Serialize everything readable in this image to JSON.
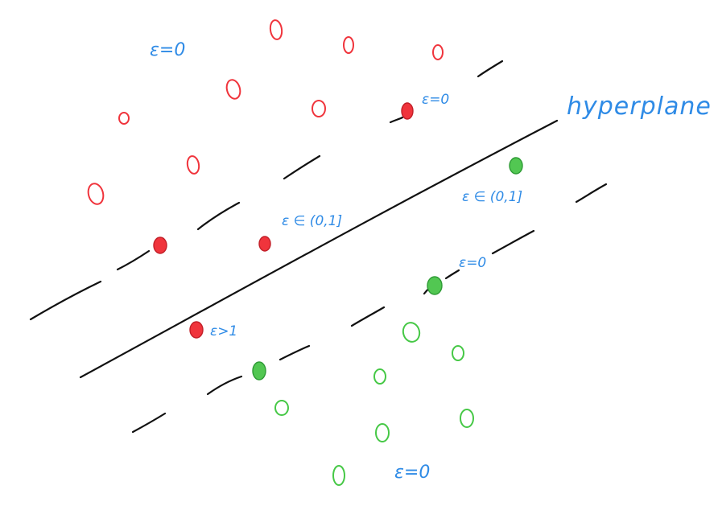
{
  "labels": {
    "hyperplane": "hyperplane",
    "eps_zero_top": "ε=0",
    "eps_zero_red_margin": "ε=0",
    "eps_interval_red": "ε ∈ (0,1]",
    "eps_interval_green": "ε ∈ (0,1]",
    "eps_zero_green_margin": "ε=0",
    "eps_greater_one": "ε>1",
    "eps_zero_bottom": "ε=0"
  },
  "colors": {
    "red": "#f0343c",
    "green": "#46c846",
    "label_blue": "#2f8be6",
    "ink": "#111111"
  }
}
